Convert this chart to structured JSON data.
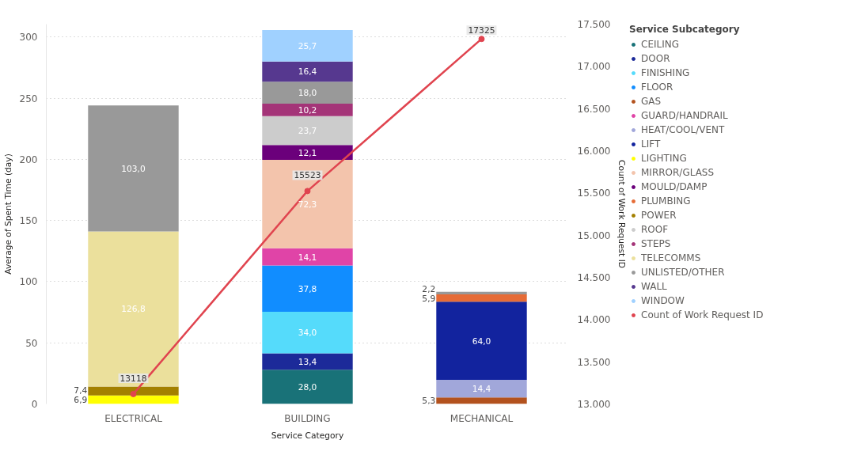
{
  "chart_data": {
    "type": "bar",
    "stacked": true,
    "xlabel": "Service Category",
    "ylabel": "Average of Spent Time (day)",
    "y2label": "Count of Work Request ID",
    "legend_title": "Service Subcategory",
    "legend": "right",
    "grid": "y",
    "categories": [
      "ELECTRICAL",
      "BUILDING",
      "MECHANICAL"
    ],
    "ylim": [
      0,
      310.6
    ],
    "yticks": [
      0,
      50,
      100,
      150,
      200,
      250,
      300
    ],
    "y2lim": [
      13000,
      17500
    ],
    "y2ticks": [
      {
        "value": 13000,
        "label": "13.000"
      },
      {
        "value": 13500,
        "label": "13.500"
      },
      {
        "value": 14000,
        "label": "14.000"
      },
      {
        "value": 14500,
        "label": "14.500"
      },
      {
        "value": 15000,
        "label": "15.000"
      },
      {
        "value": 15500,
        "label": "15.500"
      },
      {
        "value": 16000,
        "label": "16.000"
      },
      {
        "value": 16500,
        "label": "16.500"
      },
      {
        "value": 17000,
        "label": "17.000"
      },
      {
        "value": 17500,
        "label": "17.500"
      }
    ],
    "series": [
      {
        "name": "CEILING",
        "color": "#197278",
        "values": [
          null,
          28.0,
          null
        ],
        "value_labels": [
          null,
          "28,0",
          null
        ]
      },
      {
        "name": "DOOR",
        "color": "#1c2a99",
        "values": [
          null,
          13.4,
          null
        ],
        "value_labels": [
          null,
          "13,4",
          null
        ]
      },
      {
        "name": "FINISHING",
        "color": "#55dbfb",
        "values": [
          null,
          34.0,
          null
        ],
        "value_labels": [
          null,
          "34,0",
          null
        ]
      },
      {
        "name": "FLOOR",
        "color": "#118dff",
        "values": [
          null,
          37.8,
          null
        ],
        "value_labels": [
          null,
          "37,8",
          null
        ]
      },
      {
        "name": "GAS",
        "color": "#b3521e",
        "values": [
          null,
          null,
          5.3
        ],
        "value_labels": [
          null,
          null,
          "5,3"
        ]
      },
      {
        "name": "GUARD/HANDRAIL",
        "color": "#e044a7",
        "values": [
          null,
          14.1,
          null
        ],
        "value_labels": [
          null,
          "14,1",
          null
        ]
      },
      {
        "name": "HEAT/COOL/VENT",
        "color": "#a1a7da",
        "values": [
          null,
          null,
          14.4
        ],
        "value_labels": [
          null,
          null,
          "14,4"
        ]
      },
      {
        "name": "LIFT",
        "color": "#12239e",
        "values": [
          null,
          null,
          64.0
        ],
        "value_labels": [
          null,
          null,
          "64,0"
        ]
      },
      {
        "name": "LIGHTING",
        "color": "#ffff00",
        "values": [
          6.9,
          null,
          null
        ],
        "value_labels": [
          "6,9",
          null,
          null
        ]
      },
      {
        "name": "MIRROR/GLASS",
        "color": "#f3c4ac",
        "values": [
          null,
          72.3,
          null
        ],
        "value_labels": [
          null,
          "72,3",
          null
        ]
      },
      {
        "name": "MOULD/DAMP",
        "color": "#6b007b",
        "values": [
          null,
          12.1,
          null
        ],
        "value_labels": [
          null,
          "12,1",
          null
        ]
      },
      {
        "name": "PLUMBING",
        "color": "#e66c37",
        "values": [
          null,
          null,
          5.9
        ],
        "value_labels": [
          null,
          null,
          "5,9"
        ]
      },
      {
        "name": "POWER",
        "color": "#a38000",
        "values": [
          7.4,
          null,
          null
        ],
        "value_labels": [
          "7,4",
          null,
          null
        ]
      },
      {
        "name": "ROOF",
        "color": "#cccccc",
        "values": [
          null,
          23.7,
          null
        ],
        "value_labels": [
          null,
          "23,7",
          null
        ]
      },
      {
        "name": "STEPS",
        "color": "#a43478",
        "values": [
          null,
          10.2,
          null
        ],
        "value_labels": [
          null,
          "10,2",
          null
        ]
      },
      {
        "name": "TELECOMMS",
        "color": "#ebe09c",
        "values": [
          126.8,
          null,
          null
        ],
        "value_labels": [
          "126,8",
          null,
          null
        ]
      },
      {
        "name": "UNLISTED/OTHER",
        "color": "#999999",
        "values": [
          103.0,
          18.0,
          2.2
        ],
        "value_labels": [
          "103,0",
          "18,0",
          "2,2"
        ]
      },
      {
        "name": "WALL",
        "color": "#56388f",
        "values": [
          null,
          16.4,
          null
        ],
        "value_labels": [
          null,
          "16,4",
          null
        ]
      },
      {
        "name": "WINDOW",
        "color": "#a0d1ff",
        "values": [
          null,
          25.7,
          null
        ],
        "value_labels": [
          null,
          "25,7",
          null
        ]
      },
      {
        "name": "Count of Work Request ID",
        "type": "line",
        "axis": "y2",
        "marker": "circle",
        "color": "#e0444f",
        "values": [
          13118,
          15523,
          17325
        ],
        "value_labels": [
          "13118",
          "15523",
          "17325"
        ]
      }
    ]
  }
}
